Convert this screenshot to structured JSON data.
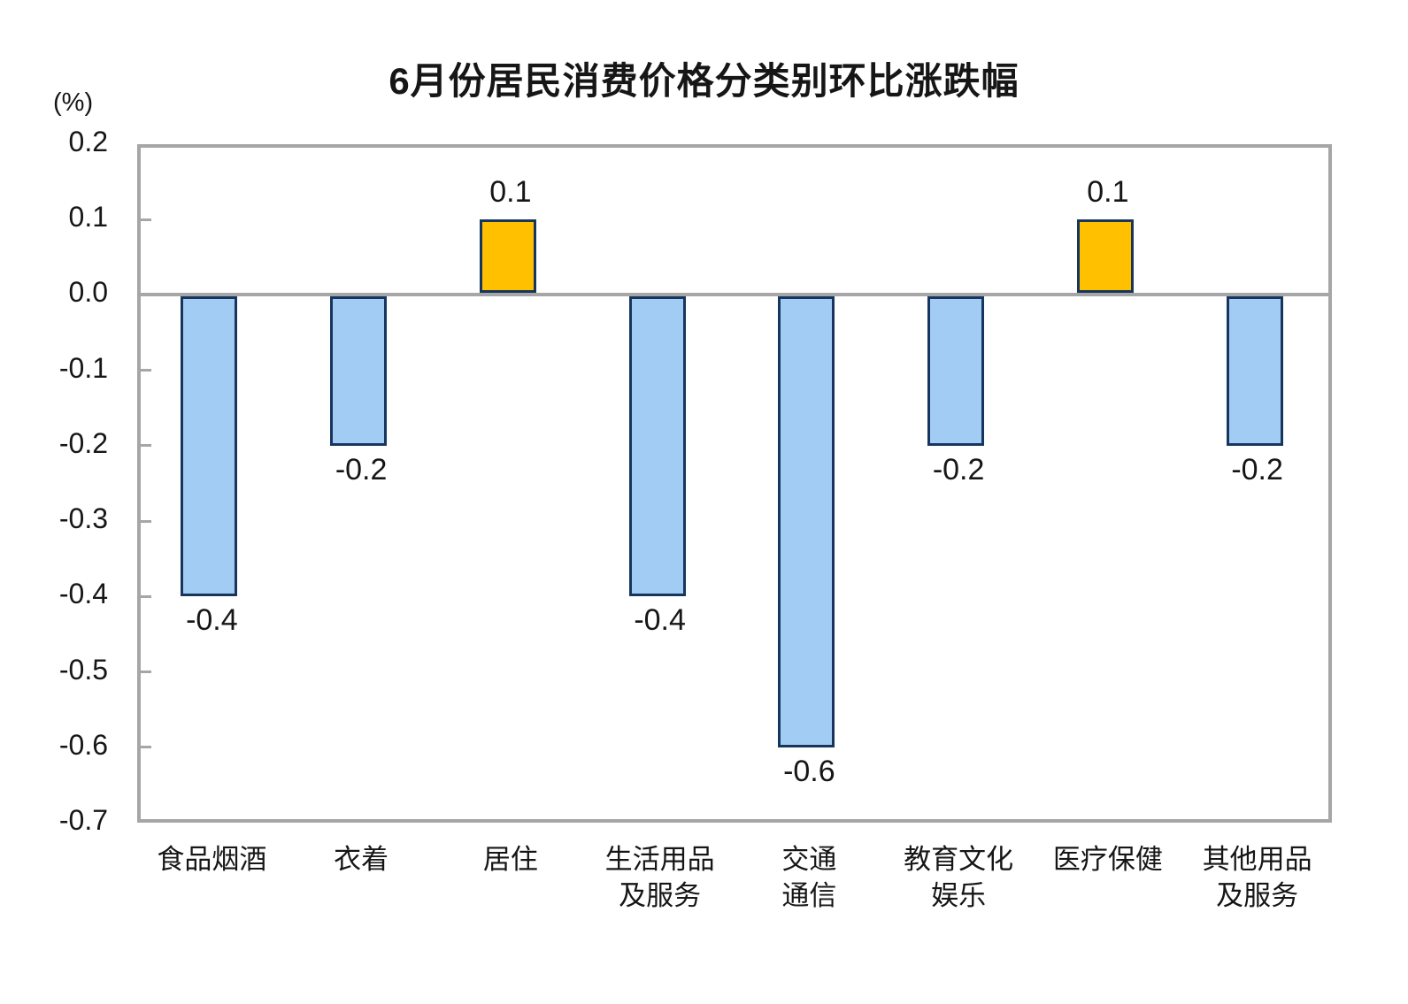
{
  "chart_data": {
    "type": "bar",
    "title": "6月份居民消费价格分类别环比涨跌幅",
    "unit_label": "(%)",
    "xlabel": "",
    "ylabel": "(%)",
    "grid": "off",
    "legend": "none",
    "categories": [
      "食品烟酒",
      "衣着",
      "居住",
      "生活用品\n及服务",
      "交通\n通信",
      "教育文化\n娱乐",
      "医疗保健",
      "其他用品\n及服务"
    ],
    "values": [
      -0.4,
      -0.2,
      0.1,
      -0.4,
      -0.6,
      -0.2,
      0.1,
      -0.2
    ],
    "value_labels": [
      "-0.4",
      "-0.2",
      "0.1",
      "-0.4",
      "-0.6",
      "-0.2",
      "0.1",
      "-0.2"
    ],
    "ytick_labels": [
      "0.2",
      "0.1",
      "0.0",
      "-0.1",
      "-0.2",
      "-0.3",
      "-0.4",
      "-0.5",
      "-0.6",
      "-0.7"
    ],
    "ylim": [
      -0.7,
      0.2
    ],
    "colors": {
      "positive_bar": "#FFC000",
      "negative_bar": "#A3CCF4",
      "bar_border": "#17365D",
      "axis_frame": "#A6A6A6",
      "text": "#161616"
    }
  }
}
